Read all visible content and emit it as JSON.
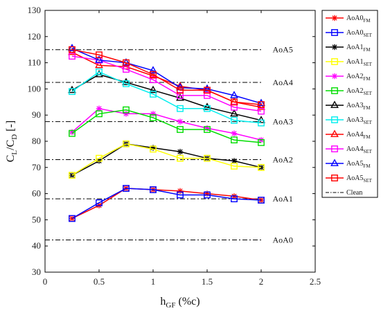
{
  "chart_data": {
    "type": "line",
    "xlabel_main": "h",
    "xlabel_sub": "GF",
    "xlabel_tail": " (%c)",
    "ylabel_main": "C",
    "ylabel_sub1": "L",
    "ylabel_mid": "/C",
    "ylabel_sub2": "D",
    "ylabel_tail": " [-]",
    "xlim": [
      0,
      2.5
    ],
    "ylim": [
      30,
      130
    ],
    "xticks": [
      0,
      0.5,
      1,
      1.5,
      2,
      2.5
    ],
    "xtick_labels": [
      "0",
      "0.5",
      "1",
      "1.5",
      "2",
      "2.5"
    ],
    "yticks": [
      30,
      40,
      50,
      60,
      70,
      80,
      90,
      100,
      110,
      120,
      130
    ],
    "ytick_labels": [
      "30",
      "40",
      "50",
      "60",
      "70",
      "80",
      "90",
      "100",
      "110",
      "120",
      "130"
    ],
    "grid": false,
    "legend_position": "outside-right",
    "x": [
      0.25,
      0.5,
      0.75,
      1.0,
      1.25,
      1.5,
      1.75,
      2.0
    ],
    "series": [
      {
        "base": "AoA0",
        "sub": "FM",
        "color": "#ff0000",
        "marker": "asterisk",
        "values": [
          50.5,
          55.5,
          62,
          61.5,
          61,
          60,
          59,
          57.5
        ]
      },
      {
        "base": "AoA0",
        "sub": "SET",
        "color": "#0000ff",
        "marker": "square",
        "values": [
          50.5,
          56.5,
          62,
          61.5,
          59.5,
          59.5,
          58,
          57.5
        ]
      },
      {
        "base": "AoA1",
        "sub": "FM",
        "color": "#000000",
        "marker": "asterisk",
        "values": [
          67,
          72.5,
          79,
          77.5,
          76,
          73.5,
          72.5,
          70
        ]
      },
      {
        "base": "AoA1",
        "sub": "SET",
        "color": "#ffff00",
        "marker": "square",
        "values": [
          67,
          73.5,
          79,
          77,
          73.5,
          73.5,
          70.5,
          70
        ]
      },
      {
        "base": "AoA2",
        "sub": "FM",
        "color": "#ff00ff",
        "marker": "asterisk",
        "values": [
          83.5,
          92.5,
          90.5,
          90.5,
          87.5,
          85,
          83,
          80.5
        ]
      },
      {
        "base": "AoA2",
        "sub": "SET",
        "color": "#00dd00",
        "marker": "square",
        "values": [
          83,
          90.5,
          92,
          89,
          84.5,
          84.5,
          80.5,
          79.5
        ]
      },
      {
        "base": "AoA3",
        "sub": "FM",
        "color": "#000000",
        "marker": "triangle",
        "values": [
          99.5,
          105.5,
          102.5,
          99.5,
          96.5,
          93,
          90.5,
          88
        ]
      },
      {
        "base": "AoA3",
        "sub": "SET",
        "color": "#00eeee",
        "marker": "square",
        "values": [
          99,
          106.5,
          102,
          98,
          92.5,
          92.5,
          88,
          87
        ]
      },
      {
        "base": "AoA4",
        "sub": "FM",
        "color": "#ff0000",
        "marker": "triangle",
        "values": [
          114,
          109,
          108.5,
          105,
          101,
          99.5,
          95,
          93
        ]
      },
      {
        "base": "AoA4",
        "sub": "SET",
        "color": "#ff00ff",
        "marker": "square",
        "values": [
          112.5,
          111,
          107.5,
          103.5,
          97.5,
          97.5,
          93,
          91.5
        ]
      },
      {
        "base": "AoA5",
        "sub": "FM",
        "color": "#0000ff",
        "marker": "triangle",
        "values": [
          115.5,
          111,
          110,
          107,
          100.5,
          100,
          97.5,
          94.5
        ]
      },
      {
        "base": "AoA5",
        "sub": "SET",
        "color": "#ff0000",
        "marker": "square",
        "values": [
          115,
          113,
          110,
          105.5,
          99.5,
          99.5,
          95,
          94
        ]
      }
    ],
    "clean": {
      "label": "Clean",
      "lines": [
        {
          "label": "AoA0",
          "value": 42.3
        },
        {
          "label": "AoA1",
          "value": 58
        },
        {
          "label": "AoA2",
          "value": 73
        },
        {
          "label": "AoA3",
          "value": 87.5
        },
        {
          "label": "AoA4",
          "value": 102.5
        },
        {
          "label": "AoA5",
          "value": 115
        }
      ]
    }
  }
}
